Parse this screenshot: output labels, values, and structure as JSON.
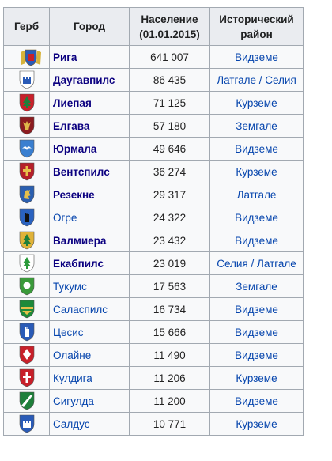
{
  "headers": {
    "arms": "Герб",
    "city": "Город",
    "population": "Население (01.01.2015)",
    "region": "Исторический район"
  },
  "rows": [
    {
      "city": "Рига",
      "population": "641 007",
      "region": "Видземе",
      "bold": true,
      "arms_icon": "riga-coat-of-arms-icon",
      "c1": "#2a5bb7",
      "c2": "#d7b33a",
      "sym": "castle",
      "wide": true
    },
    {
      "city": "Даугавпилс",
      "population": "86 435",
      "region": "Латгале / Селия",
      "bold": true,
      "arms_icon": "daugavpils-coat-of-arms-icon",
      "c1": "#ffffff",
      "c2": "#2a5bb7",
      "sym": "castle"
    },
    {
      "city": "Лиепая",
      "population": "71 125",
      "region": "Курземе",
      "bold": true,
      "arms_icon": "liepaja-coat-of-arms-icon",
      "c1": "#c8202a",
      "c2": "#1e7f3a",
      "sym": "tree"
    },
    {
      "city": "Елгава",
      "population": "57 180",
      "region": "Земгале",
      "bold": true,
      "arms_icon": "jelgava-coat-of-arms-icon",
      "c1": "#8c1c20",
      "c2": "#e0b84a",
      "sym": "elk"
    },
    {
      "city": "Юрмала",
      "population": "49 646",
      "region": "Видземе",
      "bold": true,
      "arms_icon": "jurmala-coat-of-arms-icon",
      "c1": "#3a7fd0",
      "c2": "#ffffff",
      "sym": "bird"
    },
    {
      "city": "Вентспилс",
      "population": "36 274",
      "region": "Курземе",
      "bold": true,
      "arms_icon": "ventspils-coat-of-arms-icon",
      "c1": "#b5202a",
      "c2": "#e6c04a",
      "sym": "cross"
    },
    {
      "city": "Резекне",
      "population": "29 317",
      "region": "Латгале",
      "bold": true,
      "arms_icon": "rezekne-coat-of-arms-icon",
      "c1": "#2b5fb0",
      "c2": "#e6c04a",
      "sym": "lion"
    },
    {
      "city": "Огре",
      "population": "24 322",
      "region": "Видземе",
      "bold": false,
      "arms_icon": "ogre-coat-of-arms-icon",
      "c1": "#2a62c0",
      "c2": "#111111",
      "sym": "tower"
    },
    {
      "city": "Валмиера",
      "population": "23 432",
      "region": "Видземе",
      "bold": true,
      "arms_icon": "valmiera-coat-of-arms-icon",
      "c1": "#e0b33a",
      "c2": "#1e7f3a",
      "sym": "tree"
    },
    {
      "city": "Екабпилс",
      "population": "23 019",
      "region": "Селия / Латгале",
      "bold": true,
      "arms_icon": "jekabpils-coat-of-arms-icon",
      "c1": "#ffffff",
      "c2": "#2a9a3a",
      "sym": "tree"
    },
    {
      "city": "Тукумс",
      "population": "17 563",
      "region": "Земгале",
      "bold": false,
      "arms_icon": "tukums-coat-of-arms-icon",
      "c1": "#3a9a3a",
      "c2": "#ffffff",
      "sym": "circle"
    },
    {
      "city": "Саласпилс",
      "population": "16 734",
      "region": "Видземе",
      "bold": false,
      "arms_icon": "salaspils-coat-of-arms-icon",
      "c1": "#1e8a3a",
      "c2": "#e6c04a",
      "sym": "wave"
    },
    {
      "city": "Цесис",
      "population": "15 666",
      "region": "Видземе",
      "bold": false,
      "arms_icon": "cesis-coat-of-arms-icon",
      "c1": "#2a5bb7",
      "c2": "#ffffff",
      "sym": "tower"
    },
    {
      "city": "Олайне",
      "population": "11 490",
      "region": "Видземе",
      "bold": false,
      "arms_icon": "olaine-coat-of-arms-icon",
      "c1": "#c8202a",
      "c2": "#ffffff",
      "sym": "diamond"
    },
    {
      "city": "Кулдига",
      "population": "11 206",
      "region": "Курземе",
      "bold": false,
      "arms_icon": "kuldiga-coat-of-arms-icon",
      "c1": "#c8202a",
      "c2": "#ffffff",
      "sym": "cross"
    },
    {
      "city": "Сигулда",
      "population": "11 200",
      "region": "Видземе",
      "bold": false,
      "arms_icon": "sigulda-coat-of-arms-icon",
      "c1": "#1e7f3a",
      "c2": "#ffffff",
      "sym": "stripe"
    },
    {
      "city": "Салдус",
      "population": "10 771",
      "region": "Курземе",
      "bold": false,
      "arms_icon": "saldus-coat-of-arms-icon",
      "c1": "#2a5bb7",
      "c2": "#ffffff",
      "sym": "castle"
    }
  ]
}
